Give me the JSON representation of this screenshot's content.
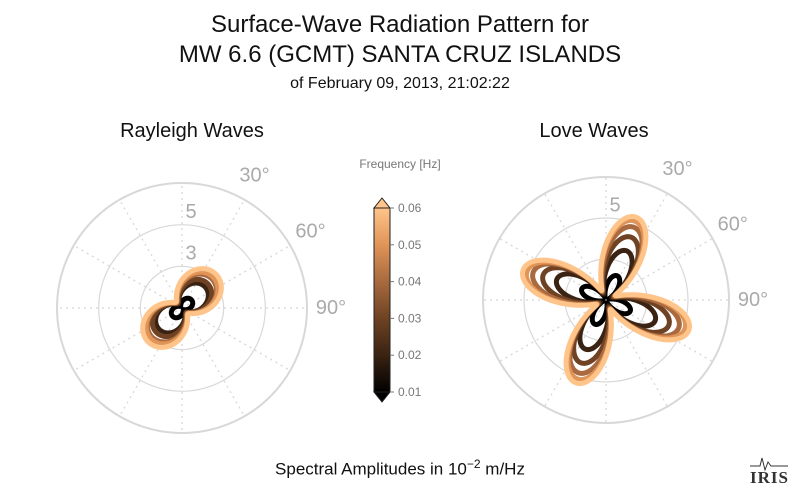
{
  "title": {
    "line1": "Surface-Wave Radiation Pattern for",
    "line2": "MW 6.6 (GCMT) SANTA CRUZ ISLANDS",
    "line3": "of February 09, 2013, 21:02:22"
  },
  "footer": {
    "prefix": "Spectral Amplitudes in 10",
    "exponent": "−2",
    "unit": " m/Hz"
  },
  "logo_text": "IRIS",
  "colors": {
    "grid": "#d8d8d8",
    "tick_text": "#aaaaaa",
    "colormap": [
      "#000000",
      "#3a2312",
      "#6e4223",
      "#a86a3e",
      "#e09458",
      "#ffc48a"
    ]
  },
  "chart_data": [
    {
      "type": "polar",
      "title": "Rayleigh Waves",
      "r_max": 6,
      "r_ticks": [
        3,
        5
      ],
      "r_tick_labels": [
        "3",
        "5"
      ],
      "theta_tick_labels": [
        "30°",
        "60°",
        "90°"
      ],
      "theta_ticks_deg": [
        30,
        60,
        90
      ],
      "pattern": "rayleigh",
      "series": [
        {
          "frequency": 0.01,
          "peak_amplitude": 0.6,
          "lobe_azimuth_deg": 50
        },
        {
          "frequency": 0.02,
          "peak_amplitude": 1.5,
          "lobe_azimuth_deg": 48
        },
        {
          "frequency": 0.03,
          "peak_amplitude": 1.7,
          "lobe_azimuth_deg": 47
        },
        {
          "frequency": 0.04,
          "peak_amplitude": 2.0,
          "lobe_azimuth_deg": 46
        },
        {
          "frequency": 0.05,
          "peak_amplitude": 2.1,
          "lobe_azimuth_deg": 45
        },
        {
          "frequency": 0.06,
          "peak_amplitude": 2.3,
          "lobe_azimuth_deg": 45
        }
      ]
    },
    {
      "type": "polar",
      "title": "Love Waves",
      "r_max": 6,
      "r_ticks": [
        5
      ],
      "r_tick_labels": [
        "5"
      ],
      "theta_tick_labels": [
        "30°",
        "60°",
        "90°"
      ],
      "theta_ticks_deg": [
        30,
        60,
        90
      ],
      "pattern": "love",
      "series": [
        {
          "frequency": 0.01,
          "peak_amplitude": 1.3,
          "lobe_azimuth_deg": 25
        },
        {
          "frequency": 0.02,
          "peak_amplitude": 2.6,
          "lobe_azimuth_deg": 23
        },
        {
          "frequency": 0.03,
          "peak_amplitude": 3.3,
          "lobe_azimuth_deg": 22
        },
        {
          "frequency": 0.04,
          "peak_amplitude": 3.8,
          "lobe_azimuth_deg": 21
        },
        {
          "frequency": 0.05,
          "peak_amplitude": 4.1,
          "lobe_azimuth_deg": 20
        },
        {
          "frequency": 0.06,
          "peak_amplitude": 4.3,
          "lobe_azimuth_deg": 20
        }
      ]
    }
  ],
  "colorbar": {
    "title": "Frequency [Hz]",
    "min": 0.01,
    "max": 0.06,
    "ticks": [
      0.01,
      0.02,
      0.03,
      0.04,
      0.05,
      0.06
    ],
    "tick_labels": [
      "0.01",
      "0.02",
      "0.03",
      "0.04",
      "0.05",
      "0.06"
    ]
  }
}
